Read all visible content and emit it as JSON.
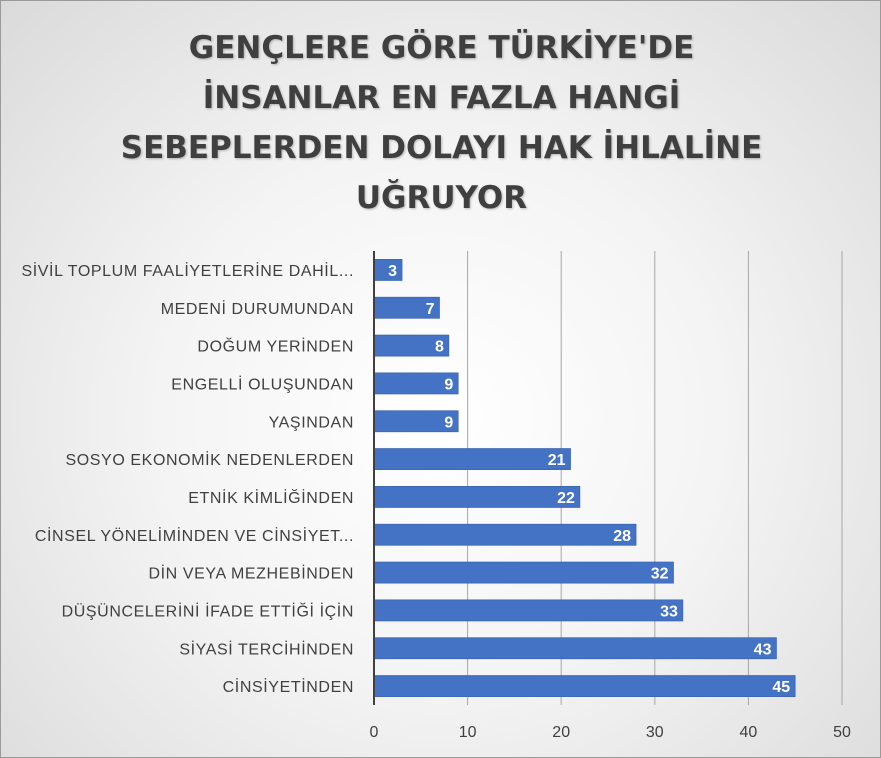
{
  "chart_data": {
    "type": "bar",
    "orientation": "horizontal",
    "title_lines": [
      "GENÇLERE GÖRE TÜRKİYE'DE",
      "İNSANLAR EN FAZLA HANGİ",
      "SEBEPLERDEN DOLAYI HAK İHLALİNE",
      "UĞRUYOR"
    ],
    "categories": [
      "SİVİL TOPLUM FAALİYETLERİNE DAHİL...",
      "MEDENİ DURUMUNDAN",
      "DOĞUM YERİNDEN",
      "ENGELLİ OLUŞUNDAN",
      "YAŞINDAN",
      "SOSYO EKONOMİK NEDENLERDEN",
      "ETNİK KİMLİĞİNDEN",
      "CİNSEL YÖNELİMİNDEN VE CİNSİYET...",
      "DİN VEYA MEZHEBİNDEN",
      "DÜŞÜNCELERİNİ İFADE ETTİĞİ İÇİN",
      "SİYASİ TERCİHİNDEN",
      "CİNSİYETİNDEN"
    ],
    "values": [
      3,
      7,
      8,
      9,
      9,
      21,
      22,
      28,
      32,
      33,
      43,
      45
    ],
    "xlim": [
      0,
      50
    ],
    "xticks": [
      0,
      10,
      20,
      30,
      40,
      50
    ],
    "data_labels": true,
    "grid": "vertical",
    "legend": "none",
    "colors": {
      "bar": "#4472c4",
      "bar_edge": "#365fa8",
      "grid": "#a6a6a6",
      "axis": "#404040",
      "label_text": "#404040",
      "data_label_text": "#ffffff"
    }
  }
}
